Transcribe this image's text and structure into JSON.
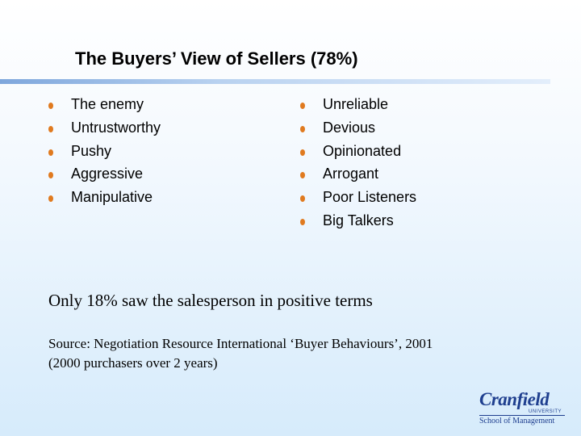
{
  "header": {
    "title": "The Buyers’ View of Sellers (78%)"
  },
  "lists": {
    "left": [
      "The enemy",
      "Untrustworthy",
      "Pushy",
      "Aggressive",
      "Manipulative"
    ],
    "right": [
      "Unreliable",
      "Devious",
      "Opinionated",
      "Arrogant",
      "Poor Listeners",
      "Big Talkers"
    ]
  },
  "statement": "Only 18% saw the salesperson in positive terms",
  "source": [
    "Source:  Negotiation Resource International ‘Buyer Behaviours’, 2001",
    "(2000 purchasers over 2 years)"
  ],
  "logo": {
    "name": "Cranfield",
    "sub": "UNIVERSITY",
    "school": "School of Management"
  }
}
